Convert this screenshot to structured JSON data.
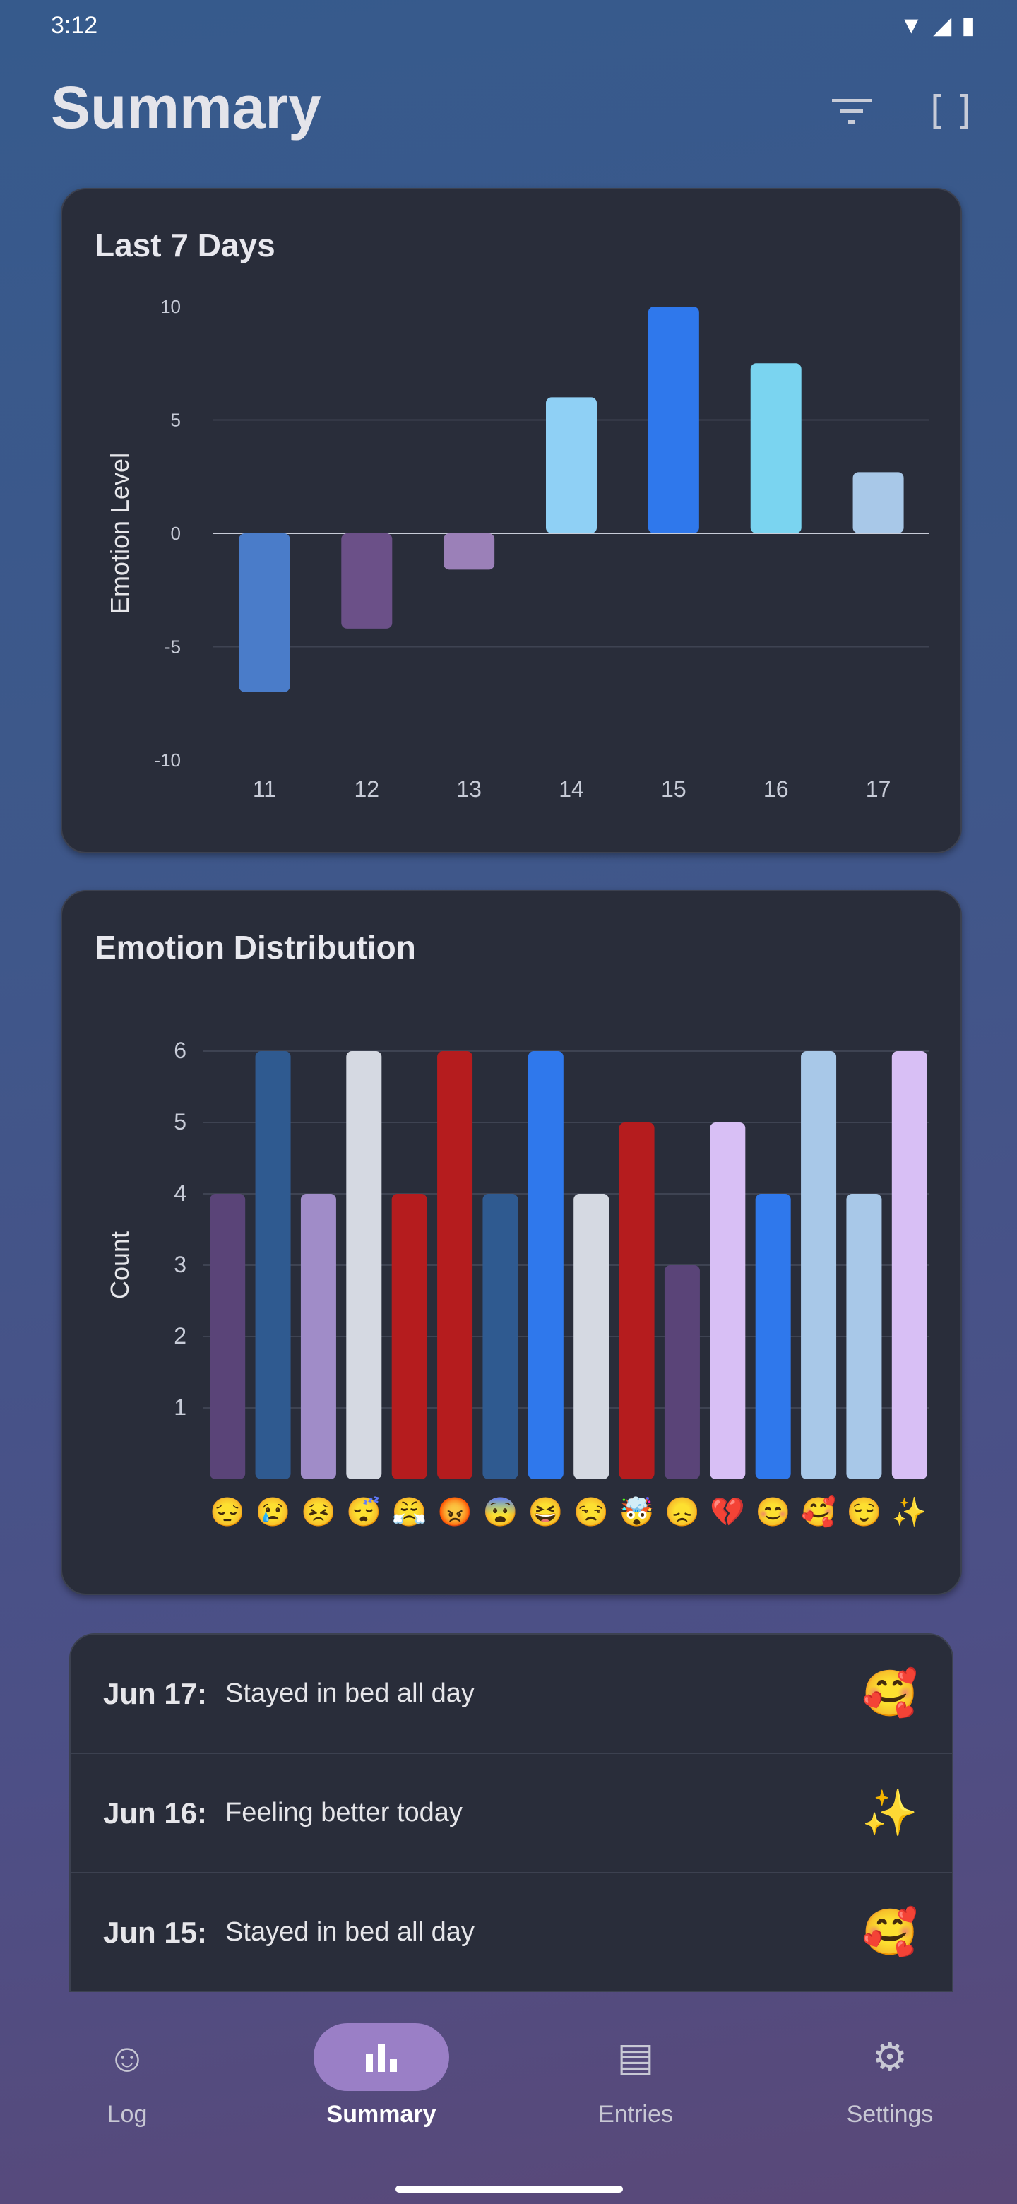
{
  "status": {
    "time": "3:12"
  },
  "header": {
    "title": "Summary",
    "icons": [
      "filter-icon",
      "fullscreen-icon"
    ]
  },
  "chart_data": [
    {
      "type": "bar",
      "title": "Last 7 Days",
      "ylabel": "Emotion Level",
      "xlabel": "",
      "categories": [
        "11",
        "12",
        "13",
        "14",
        "15",
        "16",
        "17"
      ],
      "values": [
        -7,
        -4.2,
        -1.6,
        6,
        10,
        7.5,
        2.7
      ],
      "ylim": [
        -10,
        10
      ],
      "yticks": [
        "10",
        "5",
        "0",
        "-5",
        "-10"
      ],
      "colors": [
        "#4a7cc9",
        "#6b5088",
        "#9b80b8",
        "#8fd0f5",
        "#2f78ec",
        "#7ad4f0",
        "#a8c8e8"
      ],
      "grid": true
    },
    {
      "type": "bar",
      "title": "Emotion Distribution",
      "ylabel": "Count",
      "xlabel": "",
      "categories": [
        "😔",
        "😢",
        "😣",
        "😴",
        "😤",
        "😡",
        "😨",
        "😆",
        "😒",
        "🤯",
        "😞",
        "💔",
        "😊",
        "🥰",
        "😌",
        "✨"
      ],
      "values": [
        4,
        6,
        4,
        6,
        4,
        6,
        4,
        6,
        4,
        5,
        3,
        5,
        4,
        6,
        4,
        6
      ],
      "ylim": [
        0,
        6
      ],
      "yticks": [
        "1",
        "2",
        "3",
        "4",
        "5",
        "6"
      ],
      "colors": [
        "#5a4478",
        "#2f5a90",
        "#a08cc8",
        "#d5d9e2",
        "#b51c1e",
        "#b51c1e",
        "#2f5a90",
        "#2f78ec",
        "#d5d9e2",
        "#b51c1e",
        "#5a4478",
        "#d8bff5",
        "#2f78ec",
        "#a8c8e8",
        "#a8c8e8",
        "#d8bff5"
      ],
      "grid": true
    }
  ],
  "entries": [
    {
      "date": "Jun 17:",
      "text": "Stayed in bed all day",
      "emoji": "🥰"
    },
    {
      "date": "Jun 16:",
      "text": "Feeling better today",
      "emoji": "✨"
    },
    {
      "date": "Jun 15:",
      "text": "Stayed in bed all day",
      "emoji": "🥰"
    }
  ],
  "nav": [
    {
      "label": "Log",
      "icon": "add-emoji-icon"
    },
    {
      "label": "Summary",
      "icon": "bar-chart-icon",
      "active": true
    },
    {
      "label": "Entries",
      "icon": "list-icon"
    },
    {
      "label": "Settings",
      "icon": "gear-icon"
    }
  ]
}
